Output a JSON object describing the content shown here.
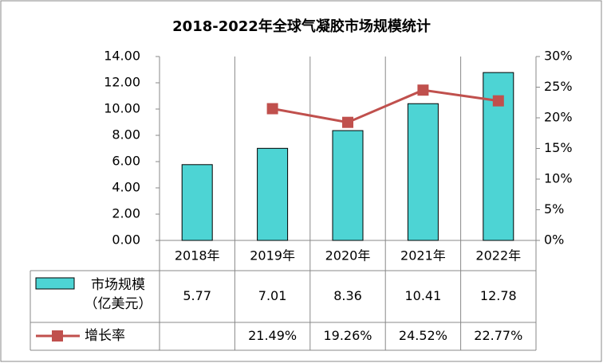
{
  "chart_data": {
    "type": "bar-line",
    "title": "2018-2022年全球气凝胶市场规模统计",
    "categories": [
      "2018年",
      "2019年",
      "2020年",
      "2021年",
      "2022年"
    ],
    "series": [
      {
        "name": "市场规模（亿美元）",
        "color": "#4dd4d4",
        "type": "bar",
        "values": [
          5.77,
          7.01,
          8.36,
          10.41,
          12.78
        ]
      },
      {
        "name": "增长率",
        "color": "#c0504d",
        "type": "line",
        "axis": "y2",
        "values": [
          null,
          21.49,
          19.26,
          24.52,
          22.77
        ],
        "value_labels": [
          null,
          "21.49%",
          "19.26%",
          "24.52%",
          "22.77%"
        ]
      }
    ],
    "ylim": [
      0,
      14
    ],
    "yticks": [
      {
        "value": 0,
        "label": "0.00"
      },
      {
        "value": 2,
        "label": "2.00"
      },
      {
        "value": 4,
        "label": "4.00"
      },
      {
        "value": 6,
        "label": "6.00"
      },
      {
        "value": 8,
        "label": "8.00"
      },
      {
        "value": 10,
        "label": "10.00"
      },
      {
        "value": 12,
        "label": "12.00"
      },
      {
        "value": 14,
        "label": "14.00"
      }
    ],
    "y2lim": [
      0,
      30
    ],
    "y2ticks": [
      {
        "value": 0,
        "label": "0%"
      },
      {
        "value": 5,
        "label": "5%"
      },
      {
        "value": 10,
        "label": "10%"
      },
      {
        "value": 15,
        "label": "15%"
      },
      {
        "value": 20,
        "label": "20%"
      },
      {
        "value": 25,
        "label": "25%"
      },
      {
        "value": 30,
        "label": "30%"
      }
    ]
  }
}
